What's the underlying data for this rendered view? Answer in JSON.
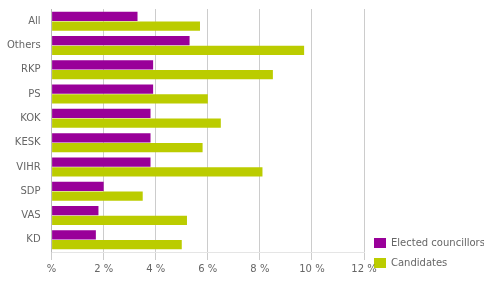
{
  "chart_data": {
    "type": "bar",
    "orientation": "horizontal",
    "categories": [
      "All",
      "Others",
      "RKP",
      "PS",
      "KOK",
      "KESK",
      "VIHR",
      "SDP",
      "VAS",
      "KD"
    ],
    "series": [
      {
        "name": "Elected councillors",
        "color": "#990099",
        "values": [
          3.3,
          5.3,
          3.9,
          3.9,
          3.8,
          3.8,
          3.8,
          2.0,
          1.8,
          1.7
        ]
      },
      {
        "name": "Candidates",
        "color": "#bbcc00",
        "values": [
          5.7,
          9.7,
          8.5,
          6.0,
          6.5,
          5.8,
          8.1,
          3.5,
          5.2,
          5.0
        ]
      }
    ],
    "xlim": [
      0,
      12
    ],
    "xticks": [
      {
        "value": 0,
        "label": "%"
      },
      {
        "value": 2,
        "label": "2 %"
      },
      {
        "value": 4,
        "label": "4 %"
      },
      {
        "value": 6,
        "label": "6 %"
      },
      {
        "value": 8,
        "label": "8 %"
      },
      {
        "value": 10,
        "label": "10 %"
      },
      {
        "value": 12,
        "label": "12 %"
      }
    ],
    "grid": true,
    "legend": "lower right"
  }
}
